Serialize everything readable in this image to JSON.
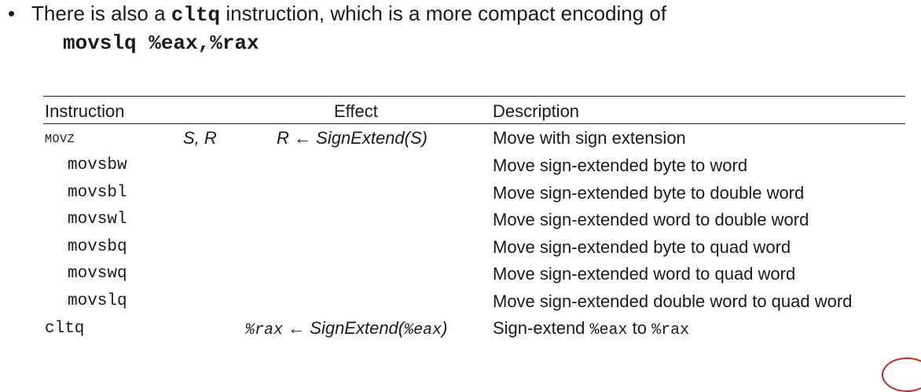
{
  "bullet": {
    "dot": "•",
    "text_before": "There is also a ",
    "code": "cltq",
    "text_after": " instruction, which is a more compact encoding of",
    "line2": "movslq %eax,%rax"
  },
  "table": {
    "headers": {
      "instruction": "Instruction",
      "effect": "Effect",
      "description": "Description"
    },
    "movz_row": {
      "instruction": "MOVZ",
      "operands": "S, R",
      "effect_dest": "R",
      "effect_arrow": "←",
      "effect_expr": "SignExtend(S)",
      "description": "Move with sign extension"
    },
    "rows": [
      {
        "instruction": "movsbw",
        "description": "Move sign-extended byte to word"
      },
      {
        "instruction": "movsbl",
        "description": "Move sign-extended byte to double word"
      },
      {
        "instruction": "movswl",
        "description": "Move sign-extended word to double word"
      },
      {
        "instruction": "movsbq",
        "description": "Move sign-extended byte to quad word"
      },
      {
        "instruction": "movswq",
        "description": "Move sign-extended word to quad word"
      },
      {
        "instruction": "movslq",
        "description": "Move sign-extended double word to quad word"
      }
    ],
    "cltq_row": {
      "instruction": "cltq",
      "effect_dest": "%rax",
      "effect_arrow": "←",
      "effect_fn": "SignExtend(",
      "effect_reg": "%eax",
      "effect_close": ")",
      "desc_prefix": "Sign-extend ",
      "desc_reg1": "%eax",
      "desc_mid": " to ",
      "desc_reg2": "%rax"
    }
  },
  "colors": {
    "text": "#1a1a1a",
    "seal": "#b03030"
  }
}
